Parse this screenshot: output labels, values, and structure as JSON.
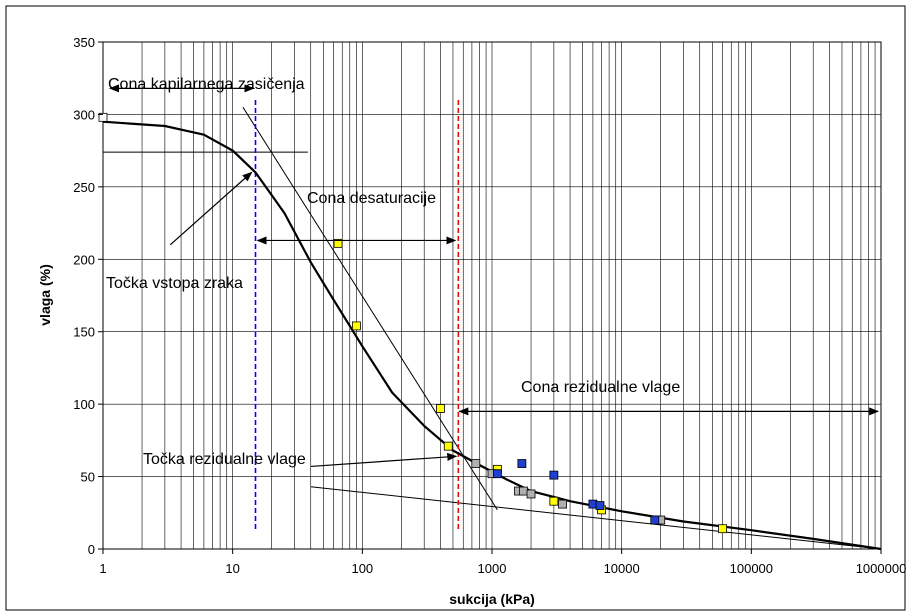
{
  "chart_data": {
    "type": "scatter",
    "title": "",
    "xlabel": "sukcija (kPa)",
    "ylabel": "vlaga (%)",
    "x_scale": "log",
    "xlim": [
      1,
      1000000
    ],
    "ylim": [
      0,
      350
    ],
    "grid": true,
    "x_ticks": [
      1,
      10,
      100,
      1000,
      10000,
      100000,
      1000000
    ],
    "x_tick_labels": [
      "1",
      "10",
      "100",
      "1000",
      "10000",
      "100000",
      "1000000"
    ],
    "y_ticks": [
      0,
      50,
      100,
      150,
      200,
      250,
      300,
      350
    ],
    "y_tick_labels": [
      "0",
      "50",
      "100",
      "150",
      "200",
      "250",
      "300",
      "350"
    ],
    "colors": {
      "yellow": "#ffff00",
      "gray": "#b0b0b0",
      "blue": "#1f3fd0",
      "white": "#ffffff",
      "marker_edge": "#000000",
      "curve": "#000000",
      "blue_dashed": "#0000ff",
      "red_dashed": "#ff0000"
    },
    "series": [
      {
        "color": "yellow",
        "points": [
          [
            65,
            211
          ],
          [
            90,
            154
          ],
          [
            400,
            97
          ],
          [
            460,
            71
          ],
          [
            1100,
            55
          ],
          [
            3000,
            33
          ],
          [
            7000,
            27
          ],
          [
            60000,
            14
          ]
        ]
      },
      {
        "color": "gray",
        "points": [
          [
            750,
            59
          ],
          [
            1000,
            52
          ],
          [
            1600,
            40
          ],
          [
            1750,
            40
          ],
          [
            2000,
            38
          ],
          [
            3500,
            31
          ],
          [
            19000,
            20
          ],
          [
            20000,
            20
          ]
        ]
      },
      {
        "color": "blue",
        "points": [
          [
            1100,
            52
          ],
          [
            1700,
            59
          ],
          [
            3000,
            51
          ],
          [
            6000,
            31
          ],
          [
            6800,
            30
          ],
          [
            18000,
            20
          ]
        ]
      },
      {
        "color": "white",
        "points": [
          [
            1,
            298
          ]
        ]
      }
    ],
    "fitted_curve": [
      [
        1,
        295
      ],
      [
        3,
        292
      ],
      [
        6,
        286
      ],
      [
        10,
        275
      ],
      [
        15,
        260
      ],
      [
        25,
        232
      ],
      [
        40,
        198
      ],
      [
        60,
        172
      ],
      [
        100,
        140
      ],
      [
        170,
        108
      ],
      [
        300,
        85
      ],
      [
        500,
        68
      ],
      [
        800,
        58
      ],
      [
        1300,
        48
      ],
      [
        2000,
        40
      ],
      [
        4000,
        33
      ],
      [
        10000,
        26
      ],
      [
        30000,
        19
      ],
      [
        100000,
        13
      ],
      [
        300000,
        7
      ],
      [
        1000000,
        0
      ]
    ],
    "tangent_lines": [
      [
        [
          1,
          274
        ],
        [
          38,
          274
        ]
      ],
      [
        [
          12,
          305
        ],
        [
          1100,
          27
        ]
      ],
      [
        [
          40,
          43
        ],
        [
          1000000,
          0
        ]
      ]
    ],
    "dashed_lines": [
      {
        "color": "blue_dashed",
        "x": 15
      },
      {
        "color": "red_dashed",
        "x": 550
      }
    ],
    "annotations": [
      {
        "id": "cona_kapilarnega",
        "text": "Cona kapilarnega zasičenja"
      },
      {
        "id": "cona_desaturacije",
        "text": "Cona desaturacije"
      },
      {
        "id": "tocka_vstopa",
        "text": "Točka vstopa zraka"
      },
      {
        "id": "cona_rezidualne",
        "text": "Cona rezidualne vlage"
      },
      {
        "id": "tocka_rezidualne",
        "text": "Točka rezidualne vlage"
      }
    ]
  }
}
